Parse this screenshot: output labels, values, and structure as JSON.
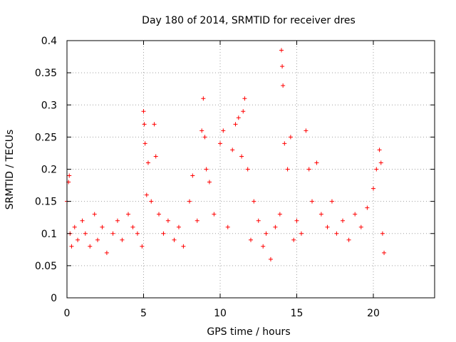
{
  "chart_data": {
    "type": "scatter",
    "title": "Day 180 of 2014, SRMTID for receiver dres",
    "xlabel": "GPS time / hours",
    "ylabel": "SRMTID / TECUs",
    "xlim": [
      0,
      24
    ],
    "ylim": [
      0,
      0.4
    ],
    "xticks": [
      0,
      5,
      10,
      15,
      20
    ],
    "xtick_labels": [
      "0",
      "5",
      "10",
      "15",
      "20"
    ],
    "yticks": [
      0,
      0.05,
      0.1,
      0.15,
      0.2,
      0.25,
      0.3,
      0.35,
      0.4
    ],
    "ytick_labels": [
      "0",
      "0.05",
      "0.1",
      "0.15",
      "0.2",
      "0.25",
      "0.3",
      "0.35",
      "0.4"
    ],
    "grid": true,
    "marker": "+",
    "color": "#ff0000",
    "series": [
      {
        "name": "SRMTID",
        "x": [
          0.0,
          0.1,
          0.15,
          0.2,
          0.3,
          0.5,
          0.7,
          1.0,
          1.2,
          1.5,
          1.8,
          2.0,
          2.3,
          2.6,
          3.0,
          3.3,
          3.6,
          4.0,
          4.3,
          4.6,
          4.9,
          5.0,
          5.05,
          5.1,
          5.2,
          5.3,
          5.5,
          5.7,
          5.8,
          6.0,
          6.3,
          6.6,
          7.0,
          7.3,
          7.6,
          8.0,
          8.2,
          8.5,
          8.8,
          8.9,
          9.0,
          9.1,
          9.3,
          9.6,
          10.0,
          10.2,
          10.5,
          10.8,
          11.0,
          11.2,
          11.4,
          11.5,
          11.6,
          11.8,
          12.0,
          12.2,
          12.5,
          12.8,
          13.0,
          13.3,
          13.6,
          13.9,
          14.0,
          14.05,
          14.1,
          14.2,
          14.4,
          14.6,
          14.8,
          15.0,
          15.3,
          15.6,
          15.8,
          16.0,
          16.3,
          16.6,
          17.0,
          17.3,
          17.6,
          18.0,
          18.4,
          18.8,
          19.2,
          19.6,
          20.0,
          20.2,
          20.4,
          20.5,
          20.6,
          20.7
        ],
        "y": [
          0.15,
          0.18,
          0.19,
          0.1,
          0.08,
          0.11,
          0.09,
          0.12,
          0.1,
          0.08,
          0.13,
          0.09,
          0.11,
          0.07,
          0.1,
          0.12,
          0.09,
          0.13,
          0.11,
          0.1,
          0.08,
          0.29,
          0.27,
          0.24,
          0.16,
          0.21,
          0.15,
          0.27,
          0.22,
          0.13,
          0.1,
          0.12,
          0.09,
          0.11,
          0.08,
          0.15,
          0.19,
          0.12,
          0.26,
          0.31,
          0.25,
          0.2,
          0.18,
          0.13,
          0.24,
          0.26,
          0.11,
          0.23,
          0.27,
          0.28,
          0.22,
          0.29,
          0.31,
          0.2,
          0.09,
          0.15,
          0.12,
          0.08,
          0.1,
          0.06,
          0.11,
          0.13,
          0.385,
          0.36,
          0.33,
          0.24,
          0.2,
          0.25,
          0.09,
          0.12,
          0.1,
          0.26,
          0.2,
          0.15,
          0.21,
          0.13,
          0.11,
          0.15,
          0.1,
          0.12,
          0.09,
          0.13,
          0.11,
          0.14,
          0.17,
          0.2,
          0.23,
          0.21,
          0.1,
          0.07
        ]
      }
    ]
  }
}
